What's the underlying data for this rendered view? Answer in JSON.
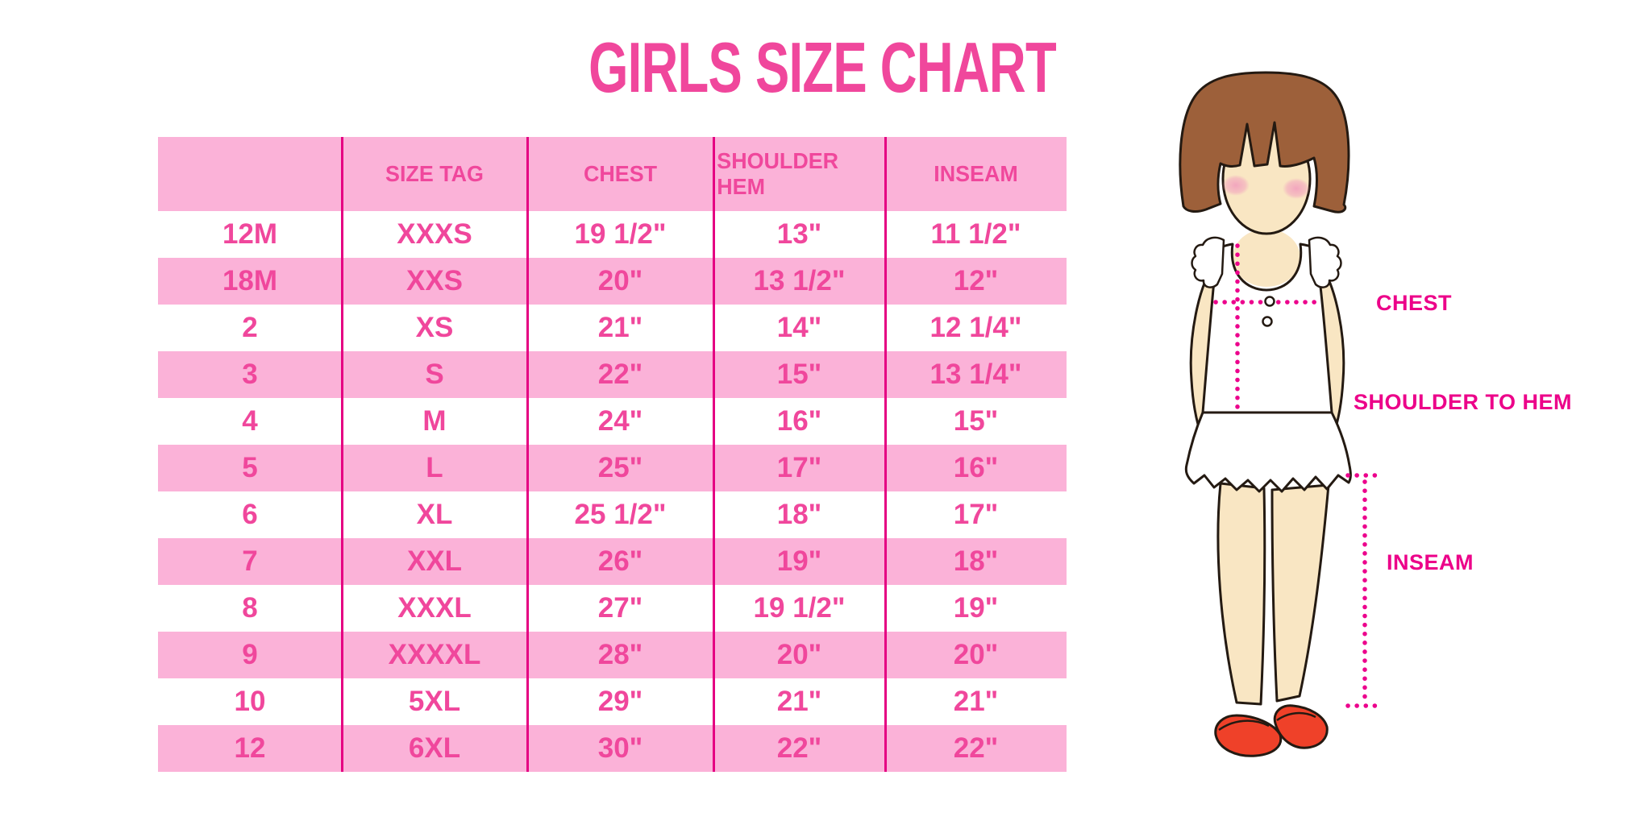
{
  "title": "GIRLS SIZE CHART",
  "chart_data": {
    "type": "table",
    "title": "GIRLS SIZE CHART",
    "columns": [
      "",
      "SIZE TAG",
      "CHEST",
      "SHOULDER HEM",
      "INSEAM"
    ],
    "rows": [
      [
        "12M",
        "XXXS",
        "19 1/2\"",
        "13\"",
        "11 1/2\""
      ],
      [
        "18M",
        "XXS",
        "20\"",
        "13 1/2\"",
        "12\""
      ],
      [
        "2",
        "XS",
        "21\"",
        "14\"",
        "12 1/4\""
      ],
      [
        "3",
        "S",
        "22\"",
        "15\"",
        "13 1/4\""
      ],
      [
        "4",
        "M",
        "24\"",
        "16\"",
        "15\""
      ],
      [
        "5",
        "L",
        "25\"",
        "17\"",
        "16\""
      ],
      [
        "6",
        "XL",
        "25 1/2\"",
        "18\"",
        "17\""
      ],
      [
        "7",
        "XXL",
        "26\"",
        "19\"",
        "18\""
      ],
      [
        "8",
        "XXXL",
        "27\"",
        "19 1/2\"",
        "19\""
      ],
      [
        "9",
        "XXXXL",
        "28\"",
        "20\"",
        "20\""
      ],
      [
        "10",
        "5XL",
        "29\"",
        "21\"",
        "21\""
      ],
      [
        "12",
        "6XL",
        "30\"",
        "22\"",
        "22\""
      ]
    ],
    "row_stripe": "alternating white and pink, first data row white",
    "grid": "vertical magenta column dividers only"
  },
  "figure": {
    "description": "illustration of a girl with dotted measurement guide lines",
    "labels": {
      "chest": "CHEST",
      "shoulder_to_hem": "SHOULDER TO HEM",
      "inseam": "INSEAM"
    }
  },
  "colors": {
    "accent_pink": "#F0479C",
    "band_pink": "#FBB2D8",
    "divider_magenta": "#E50082",
    "label_magenta": "#EC0089",
    "dotted_line_magenta": "#EC008C",
    "hair_brown": "#9D603A",
    "skin": "#F9E6C3",
    "shoe_red": "#EF4129",
    "background": "#FFFFFF"
  }
}
